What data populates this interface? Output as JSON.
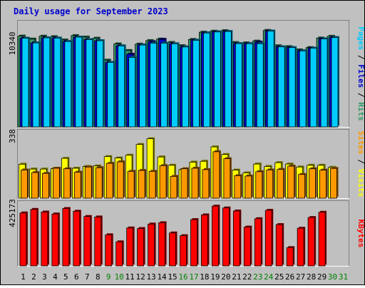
{
  "chart_data": {
    "type": "bar",
    "title": "Daily usage for September 2023",
    "categories": [
      "1",
      "2",
      "3",
      "4",
      "5",
      "6",
      "7",
      "8",
      "9",
      "10",
      "11",
      "12",
      "13",
      "14",
      "15",
      "16",
      "17",
      "18",
      "19",
      "20",
      "21",
      "22",
      "23",
      "24",
      "25",
      "26",
      "27",
      "28",
      "29",
      "30",
      "31"
    ],
    "weekend_days": [
      "9",
      "10",
      "16",
      "17",
      "23",
      "24",
      "30",
      "31"
    ],
    "panels": [
      {
        "id": "top",
        "tick_label": "10340",
        "axis_labels": [
          "Pages",
          "Files",
          "Hits"
        ],
        "ylim": [
          0,
          12100
        ],
        "series": [
          {
            "name": "Hits",
            "color": "#339966",
            "values": [
              10340,
              10000,
              10330,
              10280,
              9900,
              10400,
              10230,
              10100,
              7600,
              9450,
              8700,
              9430,
              9830,
              10000,
              9620,
              9250,
              9960,
              10790,
              10900,
              10960,
              9610,
              9570,
              9770,
              10990,
              9240,
              9140,
              8770,
              9030,
              10120,
              10320,
              null
            ]
          },
          {
            "name": "Files",
            "color": "#0000cc",
            "values": [
              10100,
              9570,
              10150,
              10120,
              9730,
              10230,
              9950,
              9820,
              7350,
              9230,
              8280,
              9330,
              9700,
              9970,
              9470,
              9110,
              9870,
              10700,
              10820,
              10870,
              9490,
              9480,
              9650,
              10920,
              9120,
              9040,
              8660,
              8970,
              10030,
              10180,
              null
            ]
          },
          {
            "name": "Pages",
            "color": "#00ccff",
            "values": [
              10100,
              9570,
              10150,
              10120,
              9730,
              10230,
              9950,
              9820,
              7350,
              9230,
              7920,
              9330,
              9540,
              9540,
              9470,
              9110,
              9870,
              10700,
              10820,
              10870,
              9490,
              9480,
              9480,
              10920,
              9120,
              9040,
              8660,
              8970,
              10030,
              10180,
              null
            ]
          }
        ]
      },
      {
        "id": "middle",
        "tick_label": "338",
        "axis_labels": [
          "Sites",
          "Visits"
        ],
        "ylim": [
          0,
          395
        ],
        "series": [
          {
            "name": "Visits",
            "color": "#ffff00",
            "values": [
              196,
              168,
              168,
              171,
              230,
              173,
              183,
              186,
              240,
              232,
              248,
              310,
              343,
              238,
              190,
              165,
              208,
              213,
              296,
              252,
              162,
              146,
              197,
              183,
              205,
              197,
              180,
              190,
              190,
              178,
              null
            ]
          },
          {
            "name": "Sites",
            "color": "#ff9900",
            "values": [
              163,
              148,
              143,
              173,
              170,
              150,
              180,
              176,
              201,
              210,
              155,
              160,
              155,
              188,
              126,
              170,
              173,
              165,
              268,
              228,
              130,
              128,
              153,
              163,
              166,
              185,
              137,
              170,
              162,
              172,
              null
            ]
          }
        ]
      },
      {
        "id": "bottom",
        "tick_label": "425173",
        "axis_labels": [
          "KBytes"
        ],
        "ylim": [
          0,
          496000
        ],
        "series": [
          {
            "name": "KBytes",
            "color": "#ff0000",
            "values": [
              405000,
              432000,
              412000,
              397000,
              439000,
              418000,
              378000,
              374000,
              238000,
              184000,
              290000,
              286000,
              320000,
              330000,
              252000,
              231000,
              354000,
              390000,
              457000,
              443000,
              420000,
              297000,
              361000,
              425000,
              316000,
              140000,
              288000,
              370000,
              410000,
              null,
              null
            ]
          }
        ]
      }
    ]
  }
}
